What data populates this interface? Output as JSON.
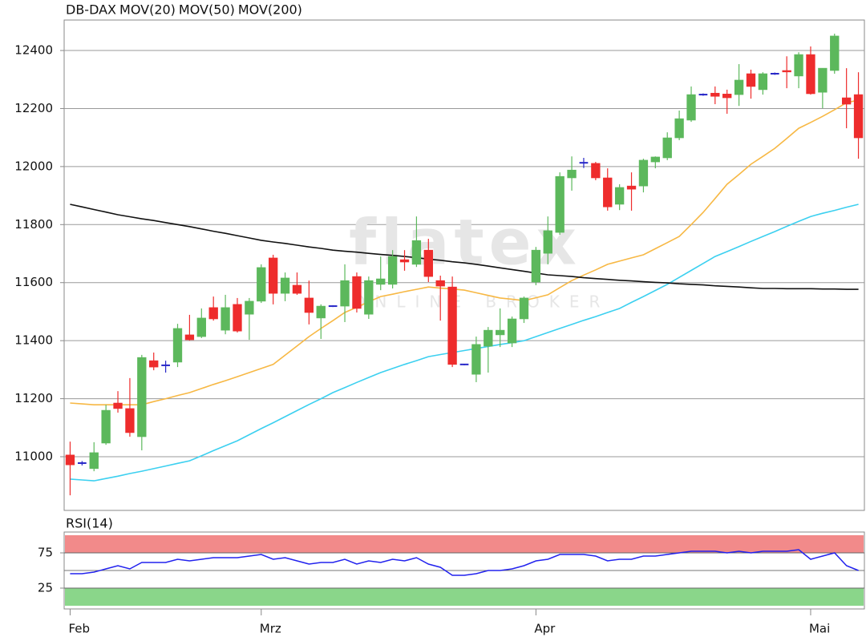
{
  "chart_data": [
    {
      "type": "candlestick",
      "name": "DB-DAX",
      "color": "#e8302c",
      "color_up": "#5cb85c",
      "color_down": "#ee2c2c",
      "color_doji": "#2828c8",
      "watermark": "flatex",
      "watermark_sub": "ONLINE BROKER",
      "categories": [
        "Feb",
        null,
        null,
        null,
        null,
        null,
        null,
        null,
        null,
        null,
        null,
        null,
        null,
        null,
        null,
        null,
        "Mrz",
        null,
        null,
        null,
        null,
        null,
        null,
        null,
        null,
        null,
        null,
        null,
        null,
        null,
        null,
        null,
        null,
        null,
        null,
        null,
        null,
        null,
        null,
        "Apr",
        null,
        null,
        null,
        null,
        null,
        null,
        null,
        null,
        null,
        null,
        null,
        null,
        null,
        null,
        null,
        null,
        null,
        null,
        null,
        null,
        null,
        null,
        "Mai",
        null,
        null,
        null,
        null
      ],
      "open": [
        11006,
        10978,
        10959,
        11047,
        11185,
        11166,
        11069,
        11331,
        11315,
        11326,
        11420,
        11414,
        11514,
        11436,
        11525,
        11491,
        11536,
        11685,
        11563,
        11591,
        11547,
        11478,
        11519,
        11519,
        11621,
        11491,
        11594,
        11594,
        11679,
        11663,
        11712,
        11607,
        11585,
        11318,
        11284,
        11381,
        11420,
        11392,
        11475,
        11602,
        11701,
        11773,
        11961,
        12013,
        12011,
        11961,
        11870,
        11933,
        11933,
        12016,
        12030,
        12099,
        12160,
        12248,
        12253,
        12250,
        12248,
        12320,
        12265,
        12320,
        12331,
        12312,
        12386,
        12256,
        12331,
        12237,
        12248
      ],
      "high": [
        11052,
        10985,
        11050,
        11179,
        11226,
        11271,
        11351,
        11359,
        11331,
        11458,
        11489,
        11511,
        11552,
        11558,
        11547,
        11547,
        11663,
        11696,
        11635,
        11635,
        11607,
        11525,
        11522,
        11663,
        11635,
        11621,
        11690,
        11712,
        11712,
        11828,
        11751,
        11624,
        11621,
        11320,
        11414,
        11447,
        11511,
        11483,
        11552,
        11723,
        11828,
        11980,
        12035,
        12030,
        12016,
        11994,
        11939,
        11980,
        12027,
        12035,
        12118,
        12193,
        12276,
        12252,
        12276,
        12265,
        12353,
        12334,
        12325,
        12324,
        12380,
        12394,
        12414,
        12339,
        12458,
        12339,
        12325
      ],
      "low": [
        10867,
        10970,
        10950,
        11041,
        11152,
        11069,
        11022,
        11298,
        11290,
        11309,
        11400,
        11409,
        11469,
        11422,
        11428,
        11403,
        11530,
        11525,
        11536,
        11558,
        11456,
        11406,
        11516,
        11464,
        11497,
        11475,
        11574,
        11580,
        11641,
        11654,
        11602,
        11469,
        11309,
        11315,
        11257,
        11290,
        11378,
        11378,
        11461,
        11591,
        11663,
        11765,
        11917,
        11995,
        11953,
        11848,
        11850,
        11848,
        11911,
        11994,
        12022,
        12091,
        12154,
        12244,
        12215,
        12182,
        12209,
        12234,
        12248,
        12316,
        12270,
        12270,
        12248,
        12201,
        12320,
        12132,
        12027
      ],
      "close": [
        10972,
        10978,
        11014,
        11160,
        11166,
        11083,
        11342,
        11309,
        11315,
        11442,
        11403,
        11478,
        11475,
        11514,
        11433,
        11536,
        11652,
        11563,
        11616,
        11563,
        11497,
        11519,
        11519,
        11607,
        11511,
        11607,
        11613,
        11690,
        11671,
        11745,
        11621,
        11588,
        11318,
        11318,
        11387,
        11436,
        11436,
        11475,
        11547,
        11712,
        11779,
        11966,
        11988,
        12013,
        11961,
        11861,
        11928,
        11922,
        12022,
        12033,
        12099,
        12165,
        12248,
        12248,
        12242,
        12237,
        12298,
        12276,
        12320,
        12320,
        12326,
        12386,
        12251,
        12339,
        12450,
        12215,
        12099
      ],
      "series": [
        {
          "name": "MOV(20)",
          "color": "#f7b844",
          "values": [
            11185,
            11182,
            11179,
            11179,
            11179,
            11179,
            11179,
            11190,
            11200,
            11211,
            11221,
            11235,
            11249,
            11262,
            11276,
            11290,
            11304,
            11318,
            11350,
            11382,
            11414,
            11442,
            11469,
            11497,
            11515,
            11534,
            11552,
            11560,
            11569,
            11577,
            11585,
            11581,
            11578,
            11574,
            11565,
            11556,
            11547,
            11543,
            11538,
            11548,
            11558,
            11583,
            11607,
            11626,
            11644,
            11663,
            11674,
            11685,
            11696,
            11717,
            11738,
            11759,
            11800,
            11842,
            11890,
            11939,
            11973,
            12008,
            12035,
            12063,
            12097,
            12132,
            12152,
            12173,
            12196,
            12220,
            12229
          ]
        },
        {
          "name": "MOV(50)",
          "color": "#3cd0f0",
          "values": [
            10923,
            10920,
            10917,
            10925,
            10933,
            10942,
            10950,
            10959,
            10968,
            10977,
            10986,
            11003,
            11021,
            11038,
            11055,
            11076,
            11097,
            11117,
            11138,
            11159,
            11180,
            11200,
            11221,
            11238,
            11256,
            11273,
            11290,
            11304,
            11318,
            11331,
            11345,
            11352,
            11359,
            11366,
            11373,
            11380,
            11387,
            11393,
            11400,
            11414,
            11428,
            11442,
            11456,
            11470,
            11483,
            11497,
            11511,
            11532,
            11552,
            11573,
            11594,
            11618,
            11642,
            11666,
            11690,
            11707,
            11724,
            11742,
            11759,
            11776,
            11794,
            11811,
            11828,
            11839,
            11849,
            11860,
            11870
          ]
        },
        {
          "name": "MOV(200)",
          "color": "#111111",
          "values": [
            11870,
            11861,
            11852,
            11843,
            11834,
            11827,
            11820,
            11814,
            11807,
            11800,
            11793,
            11785,
            11777,
            11770,
            11762,
            11754,
            11746,
            11740,
            11735,
            11729,
            11723,
            11718,
            11712,
            11708,
            11705,
            11701,
            11697,
            11694,
            11690,
            11686,
            11681,
            11677,
            11672,
            11668,
            11663,
            11657,
            11651,
            11645,
            11639,
            11633,
            11627,
            11624,
            11621,
            11617,
            11614,
            11611,
            11608,
            11606,
            11603,
            11601,
            11599,
            11596,
            11594,
            11592,
            11589,
            11587,
            11585,
            11582,
            11580,
            11580,
            11579,
            11579,
            11579,
            11578,
            11578,
            11577,
            11577
          ]
        }
      ],
      "ylim": [
        10815,
        12505
      ],
      "yticks": [
        11000,
        11200,
        11400,
        11600,
        11800,
        12000,
        12200,
        12400
      ],
      "grid": true
    },
    {
      "type": "line",
      "title": "RSI(14)",
      "color": "#2222ee",
      "values": [
        45.5,
        45.5,
        47.7,
        52.3,
        56.8,
        52.3,
        61.4,
        61.4,
        61.4,
        65.9,
        63.6,
        65.9,
        68.2,
        68.2,
        68.2,
        70.5,
        72.7,
        65.9,
        68.2,
        63.6,
        59.1,
        61.4,
        61.4,
        65.9,
        59.1,
        63.6,
        61.4,
        65.9,
        63.6,
        68.2,
        59.1,
        54.5,
        43.2,
        43.2,
        45.5,
        50,
        50,
        52.3,
        56.8,
        63.6,
        65.9,
        72.7,
        72.7,
        72.7,
        70.5,
        63.6,
        65.9,
        65.9,
        70.5,
        70.5,
        72.7,
        75,
        77.3,
        77.3,
        77.3,
        75,
        77.3,
        75,
        77.3,
        77.3,
        77.3,
        79.5,
        65.9,
        70.5,
        75,
        56.8,
        50
      ],
      "ylim": [
        0,
        100
      ],
      "yticks": [
        25,
        75
      ],
      "midline": 50,
      "bands": [
        {
          "from": 75,
          "to": 100,
          "color": "#f28a8a"
        },
        {
          "from": 0,
          "to": 25,
          "color": "#8ad68a"
        }
      ]
    }
  ]
}
